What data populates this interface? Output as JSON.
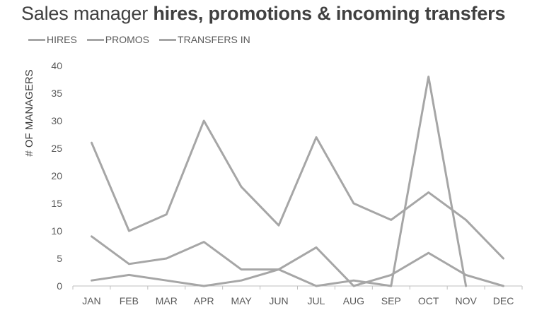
{
  "title_regular": "Sales manager ",
  "title_bold": "hires, promotions & incoming transfers",
  "chart_data": {
    "type": "line",
    "categories": [
      "JAN",
      "FEB",
      "MAR",
      "APR",
      "MAY",
      "JUN",
      "JUL",
      "AUG",
      "SEP",
      "OCT",
      "NOV",
      "DEC"
    ],
    "series": [
      {
        "name": "HIRES",
        "values": [
          26,
          10,
          13,
          30,
          18,
          11,
          27,
          15,
          12,
          17,
          12,
          5
        ],
        "color": "#a6a6a6"
      },
      {
        "name": "PROMOS",
        "values": [
          9,
          4,
          5,
          8,
          3,
          3,
          0,
          1,
          0,
          38,
          0,
          null
        ],
        "color": "#a6a6a6"
      },
      {
        "name": "TRANSFERS IN",
        "values": [
          1,
          2,
          1,
          0,
          1,
          3,
          7,
          0,
          2,
          6,
          2,
          0
        ],
        "color": "#a6a6a6"
      }
    ],
    "ylabel": "# OF MANAGERS",
    "ylim": [
      0,
      40
    ],
    "yticks": [
      "0",
      "5",
      "10",
      "15",
      "20",
      "25",
      "30",
      "35",
      "40"
    ],
    "grid": false,
    "legend_position": "top-left"
  }
}
